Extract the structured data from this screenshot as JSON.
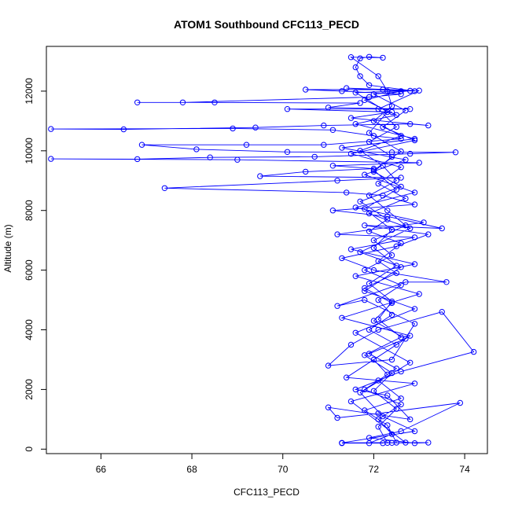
{
  "chart_data": {
    "type": "scatter",
    "mode": "points+lines",
    "title": "ATOM1 Southbound CFC113_PECD",
    "xlabel": "CFC113_PECD",
    "ylabel": "Altitude (m)",
    "xlim": [
      64.8,
      74.5
    ],
    "ylim": [
      -150,
      13500
    ],
    "xticks": [
      66,
      68,
      70,
      72,
      74
    ],
    "yticks": [
      0,
      2000,
      4000,
      6000,
      8000,
      10000,
      12000
    ],
    "grid": false,
    "series": [
      {
        "name": "Southbound",
        "color": "#0000ff",
        "marker": "open-circle",
        "points": [
          [
            72.2,
            200
          ],
          [
            71.3,
            200
          ],
          [
            72.4,
            210
          ],
          [
            73.2,
            220
          ],
          [
            72.9,
            200
          ],
          [
            71.9,
            380
          ],
          [
            72.6,
            600
          ],
          [
            73.9,
            1550
          ],
          [
            72.1,
            1200
          ],
          [
            71.2,
            1050
          ],
          [
            71.0,
            1400
          ],
          [
            72.8,
            1000
          ],
          [
            72.3,
            1800
          ],
          [
            71.6,
            2000
          ],
          [
            72.6,
            2600
          ],
          [
            74.2,
            3260
          ],
          [
            73.5,
            4600
          ],
          [
            72.1,
            4000
          ],
          [
            71.5,
            3500
          ],
          [
            71.0,
            2800
          ],
          [
            72.4,
            3000
          ],
          [
            72.9,
            4200
          ],
          [
            71.8,
            5000
          ],
          [
            71.2,
            4800
          ],
          [
            72.7,
            5600
          ],
          [
            73.6,
            5600
          ],
          [
            72.0,
            6000
          ],
          [
            71.3,
            6400
          ],
          [
            72.5,
            6800
          ],
          [
            73.2,
            7200
          ],
          [
            71.8,
            7500
          ],
          [
            73.5,
            7400
          ],
          [
            72.3,
            7800
          ],
          [
            71.1,
            8000
          ],
          [
            72.9,
            8200
          ],
          [
            72.2,
            8500
          ],
          [
            71.4,
            8600
          ],
          [
            67.4,
            8750
          ],
          [
            71.2,
            9000
          ],
          [
            72.6,
            9100
          ],
          [
            69.5,
            9150
          ],
          [
            70.5,
            9300
          ],
          [
            72.0,
            9400
          ],
          [
            71.1,
            9500
          ],
          [
            73.0,
            9600
          ],
          [
            69.0,
            9700
          ],
          [
            64.9,
            9730
          ],
          [
            66.8,
            9720
          ],
          [
            68.4,
            9780
          ],
          [
            70.7,
            9800
          ],
          [
            72.8,
            9900
          ],
          [
            73.8,
            9950
          ],
          [
            72.4,
            9950
          ],
          [
            70.1,
            9960
          ],
          [
            68.1,
            10050
          ],
          [
            66.9,
            10200
          ],
          [
            69.2,
            10200
          ],
          [
            70.9,
            10200
          ],
          [
            72.6,
            10400
          ],
          [
            72.0,
            10500
          ],
          [
            71.1,
            10700
          ],
          [
            68.9,
            10750
          ],
          [
            64.9,
            10730
          ],
          [
            66.5,
            10720
          ],
          [
            69.4,
            10780
          ],
          [
            70.9,
            10850
          ],
          [
            72.8,
            10900
          ],
          [
            73.2,
            10850
          ],
          [
            71.5,
            11100
          ],
          [
            72.4,
            11300
          ],
          [
            70.1,
            11400
          ],
          [
            72.8,
            11400
          ],
          [
            71.0,
            11450
          ],
          [
            71.7,
            11600
          ],
          [
            68.5,
            11620
          ],
          [
            66.8,
            11620
          ],
          [
            67.8,
            11620
          ],
          [
            71.9,
            11800
          ],
          [
            72.6,
            11900
          ],
          [
            71.3,
            12000
          ],
          [
            70.5,
            12050
          ],
          [
            72.2,
            12050
          ],
          [
            72.9,
            12000
          ],
          [
            71.9,
            12200
          ],
          [
            71.7,
            12500
          ],
          [
            71.6,
            12800
          ],
          [
            71.7,
            13100
          ],
          [
            71.9,
            13150
          ],
          [
            72.2,
            13120
          ],
          [
            71.5,
            13140
          ],
          [
            72.1,
            12500
          ],
          [
            72.3,
            12000
          ],
          [
            72.4,
            11500
          ],
          [
            72.0,
            11000
          ],
          [
            72.6,
            10500
          ],
          [
            71.7,
            10000
          ],
          [
            72.2,
            9500
          ],
          [
            72.5,
            9000
          ],
          [
            71.9,
            8500
          ],
          [
            72.3,
            8000
          ],
          [
            72.7,
            7500
          ],
          [
            72.0,
            7000
          ],
          [
            72.4,
            6500
          ],
          [
            71.8,
            6000
          ],
          [
            72.6,
            5500
          ],
          [
            72.1,
            5000
          ],
          [
            72.4,
            4500
          ],
          [
            71.9,
            4000
          ],
          [
            72.5,
            3500
          ],
          [
            72.0,
            3000
          ],
          [
            72.3,
            2500
          ],
          [
            71.8,
            2000
          ],
          [
            72.6,
            1500
          ],
          [
            72.1,
            1000
          ],
          [
            72.4,
            500
          ],
          [
            71.9,
            200
          ],
          [
            72.7,
            220
          ],
          [
            71.5,
            1600
          ],
          [
            72.9,
            2200
          ],
          [
            71.4,
            2400
          ],
          [
            72.8,
            3800
          ],
          [
            71.3,
            4400
          ],
          [
            73.0,
            5200
          ],
          [
            71.6,
            5800
          ],
          [
            72.9,
            6200
          ],
          [
            71.5,
            6700
          ],
          [
            72.9,
            7100
          ],
          [
            71.2,
            7200
          ],
          [
            73.1,
            7600
          ],
          [
            71.6,
            8100
          ],
          [
            72.9,
            8600
          ],
          [
            71.8,
            9200
          ],
          [
            72.7,
            9700
          ],
          [
            71.3,
            10100
          ],
          [
            72.9,
            10400
          ],
          [
            71.6,
            10900
          ],
          [
            72.5,
            11200
          ],
          [
            71.8,
            11700
          ],
          [
            72.6,
            12000
          ],
          [
            71.4,
            12100
          ],
          [
            73.0,
            12020
          ],
          [
            72.1,
            11400
          ],
          [
            72.5,
            10800
          ],
          [
            71.9,
            10300
          ],
          [
            72.4,
            9800
          ],
          [
            72.0,
            9300
          ],
          [
            72.6,
            8800
          ],
          [
            71.7,
            8300
          ],
          [
            72.3,
            7700
          ],
          [
            71.9,
            7300
          ],
          [
            72.6,
            6900
          ],
          [
            72.1,
            6300
          ],
          [
            72.5,
            5900
          ],
          [
            71.8,
            5400
          ],
          [
            72.4,
            4900
          ],
          [
            72.0,
            4300
          ],
          [
            72.7,
            3700
          ],
          [
            71.9,
            3200
          ],
          [
            72.5,
            2700
          ],
          [
            72.1,
            2300
          ],
          [
            72.6,
            1700
          ],
          [
            71.8,
            1300
          ],
          [
            72.3,
            800
          ],
          [
            72.5,
            220
          ],
          [
            71.3,
            210
          ],
          [
            72.9,
            600
          ],
          [
            72.2,
            1100
          ],
          [
            71.7,
            1900
          ],
          [
            72.8,
            2900
          ],
          [
            71.6,
            3900
          ],
          [
            72.9,
            4700
          ],
          [
            71.8,
            5300
          ],
          [
            72.6,
            6100
          ],
          [
            71.7,
            6600
          ],
          [
            72.8,
            7400
          ],
          [
            71.9,
            7900
          ],
          [
            72.7,
            8400
          ],
          [
            72.1,
            8900
          ],
          [
            72.6,
            9450
          ],
          [
            71.5,
            9900
          ],
          [
            72.9,
            10350
          ],
          [
            72.2,
            10800
          ],
          [
            72.7,
            11350
          ],
          [
            72.0,
            11900
          ],
          [
            72.8,
            12010
          ],
          [
            71.6,
            11950
          ],
          [
            72.3,
            11300
          ],
          [
            71.9,
            10600
          ],
          [
            72.6,
            9980
          ],
          [
            72.0,
            9350
          ],
          [
            72.5,
            8700
          ],
          [
            71.8,
            8050
          ],
          [
            72.4,
            7350
          ],
          [
            72.0,
            6750
          ],
          [
            72.5,
            6150
          ],
          [
            71.9,
            5550
          ],
          [
            72.4,
            4950
          ],
          [
            72.1,
            4350
          ],
          [
            72.6,
            3750
          ],
          [
            71.8,
            3150
          ],
          [
            72.4,
            2550
          ],
          [
            72.0,
            1950
          ],
          [
            72.5,
            1350
          ],
          [
            72.1,
            750
          ],
          [
            72.3,
            210
          ]
        ]
      }
    ]
  }
}
